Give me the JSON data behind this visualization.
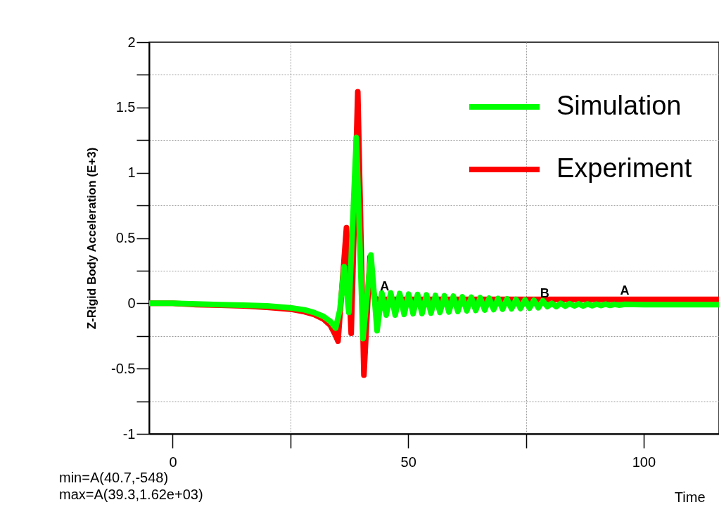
{
  "chart_data": {
    "type": "line",
    "xlabel": "Time",
    "ylabel": "Z-Rigid Body Acceleration (E+3)",
    "xlim": [
      -5,
      116
    ],
    "ylim": [
      -1,
      2
    ],
    "xticks": [
      0,
      {
        "value": 25,
        "label": null
      },
      50,
      {
        "value": 75,
        "label": null
      },
      100
    ],
    "yticks": [
      -1,
      {
        "value": -0.75,
        "label": null
      },
      -0.5,
      {
        "value": -0.25,
        "label": null
      },
      0,
      {
        "value": 0.25,
        "label": null
      },
      0.5,
      {
        "value": 0.75,
        "label": null
      },
      1,
      {
        "value": 1.25,
        "label": null
      },
      1.5,
      {
        "value": 1.75,
        "label": null
      },
      2
    ],
    "grid": true,
    "legend": "top right",
    "line_style": "solid",
    "marker": "none",
    "annotations": [
      "min=A(40.7,-548)",
      "max=A(39.3,1.62e+03)",
      {
        "text": "A",
        "x": 45,
        "y": 0.08
      },
      {
        "text": "B",
        "x": 79,
        "y": 0.03
      },
      {
        "text": "A",
        "x": 96,
        "y": 0.05
      }
    ],
    "series": [
      {
        "name": "Simulation",
        "color": "#00ff00",
        "x": [
          -5,
          0,
          5,
          10,
          15,
          20,
          25,
          28,
          30,
          32,
          33.5,
          34.6,
          35.5,
          36.4,
          37.4,
          39.0,
          40.4,
          42.1,
          43.4,
          44.4,
          45.35,
          46.3,
          47.25,
          48.2,
          49.15,
          50.1,
          51.05,
          52.0,
          52.95,
          53.9,
          54.85,
          55.8,
          56.75,
          57.7,
          58.65,
          59.6,
          60.55,
          61.5,
          62.45,
          63.4,
          64.35,
          65.3,
          66.25,
          67.2,
          68.15,
          69.1,
          70.05,
          71.0,
          71.95,
          72.9,
          73.85,
          74.8,
          75.75,
          76.7,
          77.65,
          78.6,
          79.55,
          80.5,
          81.45,
          82.4,
          83.35,
          84.3,
          85.25,
          86.2,
          87.15,
          88.1,
          89.05,
          90.0,
          90.95,
          91.9,
          92.85,
          93.8,
          94.75,
          96,
          100,
          104,
          108,
          112,
          116
        ],
        "values": [
          0.0,
          0.0,
          -0.005,
          -0.01,
          -0.015,
          -0.02,
          -0.035,
          -0.05,
          -0.07,
          -0.1,
          -0.14,
          -0.19,
          -0.05,
          0.28,
          -0.07,
          1.27,
          -0.27,
          0.37,
          -0.21,
          0.08,
          -0.09,
          0.08,
          -0.09,
          0.075,
          -0.085,
          0.07,
          -0.08,
          0.068,
          -0.078,
          0.065,
          -0.075,
          0.06,
          -0.07,
          0.058,
          -0.066,
          0.055,
          -0.062,
          0.05,
          -0.058,
          0.047,
          -0.055,
          0.044,
          -0.052,
          0.04,
          -0.048,
          0.037,
          -0.045,
          0.034,
          -0.042,
          0.03,
          -0.04,
          0.027,
          -0.037,
          0.024,
          -0.034,
          0.02,
          -0.025,
          0.0,
          -0.025,
          0.0,
          -0.022,
          -0.002,
          -0.02,
          -0.004,
          -0.02,
          -0.005,
          -0.018,
          -0.006,
          -0.017,
          -0.006,
          -0.016,
          -0.008,
          -0.014,
          -0.008,
          -0.01,
          -0.01,
          -0.01,
          -0.01,
          -0.01
        ]
      },
      {
        "name": "Experiment",
        "color": "#ff0000",
        "x": [
          -5,
          0,
          5,
          10,
          15,
          20,
          25,
          28,
          30,
          32,
          33.5,
          34.5,
          35.1,
          36.9,
          37.9,
          39.3,
          40.6,
          41.9,
          42.8,
          43.5,
          50,
          60,
          70,
          80,
          90,
          100,
          110,
          116
        ],
        "values": [
          0.0,
          0.0,
          -0.01,
          -0.015,
          -0.02,
          -0.03,
          -0.045,
          -0.065,
          -0.085,
          -0.12,
          -0.17,
          -0.24,
          -0.29,
          0.58,
          -0.23,
          1.62,
          -0.55,
          0.355,
          0.04,
          0.03,
          0.03,
          0.03,
          0.03,
          0.03,
          0.03,
          0.03,
          0.03,
          0.03
        ]
      }
    ]
  }
}
